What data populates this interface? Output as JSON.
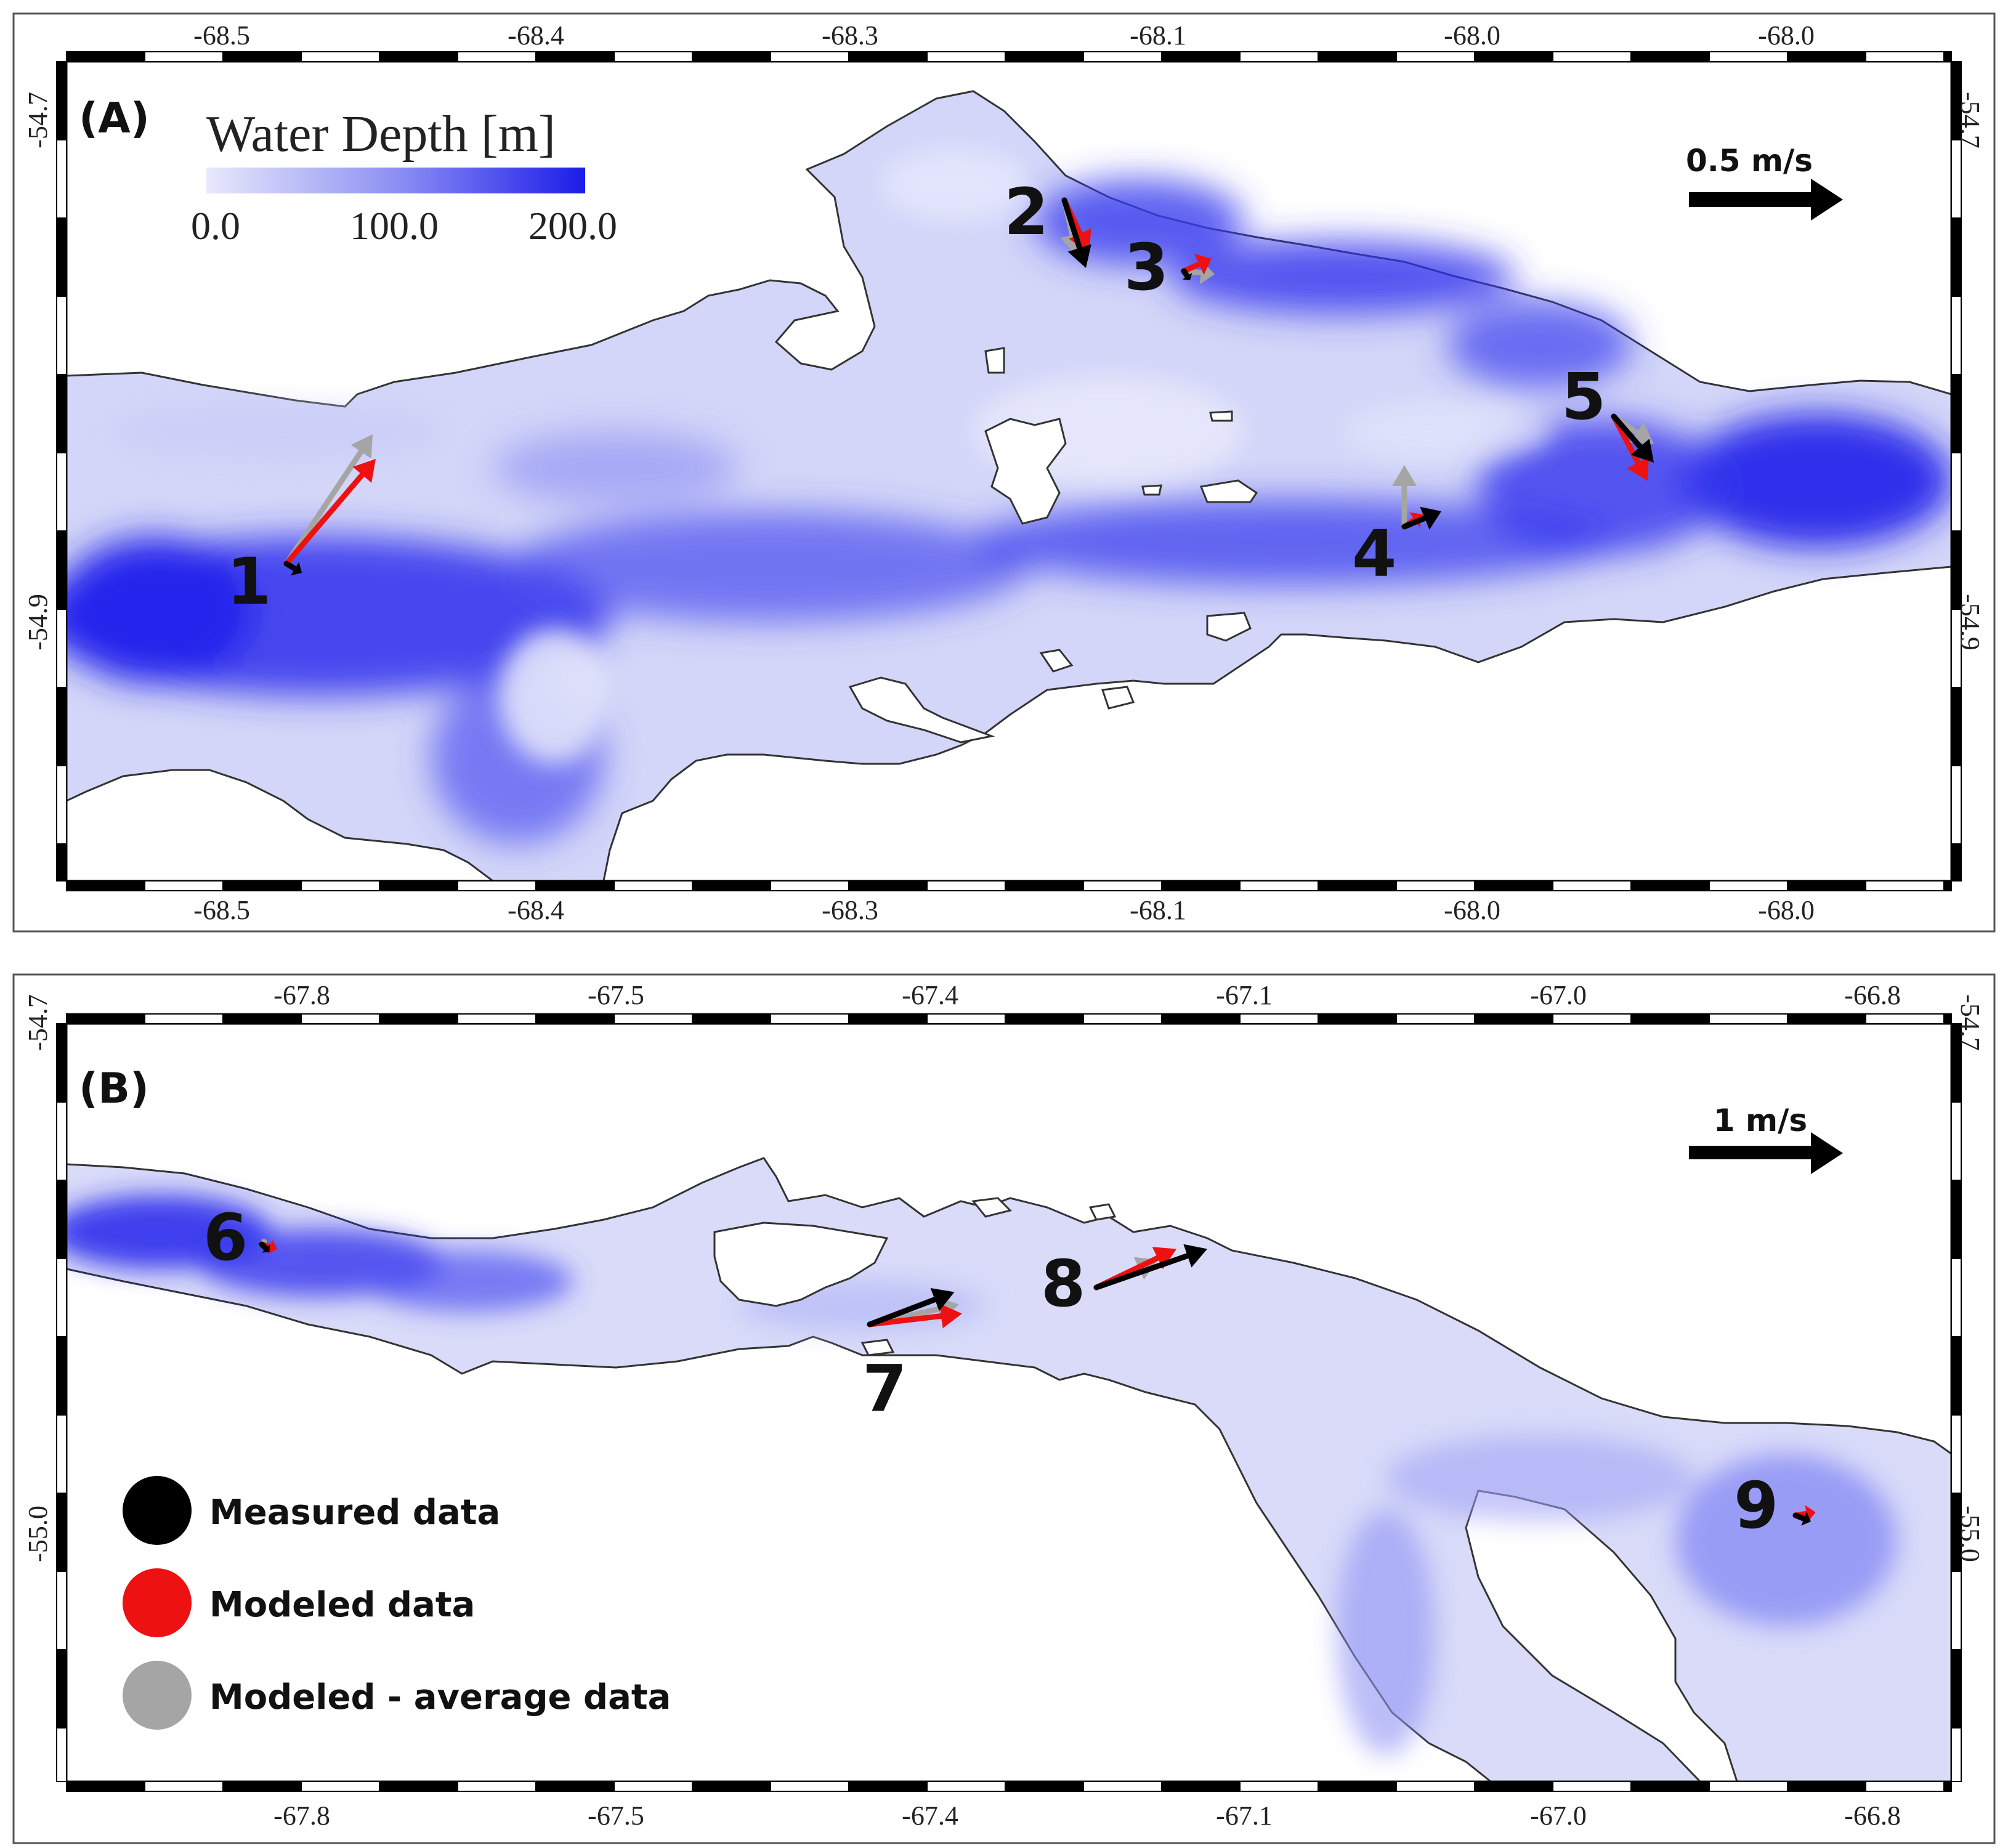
{
  "panels": [
    {
      "label": "(A)",
      "top_ticks": [
        "-68.5",
        "-68.4",
        "-68.3",
        "-68.1",
        "-68.0",
        "-68.0"
      ],
      "bottom_ticks": [
        "-68.5",
        "-68.4",
        "-68.3",
        "-68.1",
        "-68.0",
        "-68.0"
      ],
      "left_ticks": [
        "-54.7",
        "-54.9"
      ],
      "right_ticks": [
        "-54.7",
        "-54.9"
      ],
      "scale_label": "0.5 m/s",
      "stations": [
        {
          "label": "1",
          "vectors": {
            "measured": [
              0.05,
              -0.03
            ],
            "modeled": [
              0.29,
              0.34
            ],
            "average": [
              0.28,
              0.42
            ]
          }
        },
        {
          "label": "2",
          "vectors": {
            "measured": [
              0.07,
              -0.22
            ],
            "modeled": [
              0.08,
              -0.17
            ],
            "average": [
              0.04,
              -0.18
            ]
          }
        },
        {
          "label": "3",
          "vectors": {
            "measured": [
              0.02,
              -0.03
            ],
            "modeled": [
              0.09,
              0.04
            ],
            "average": [
              0.1,
              -0.01
            ]
          }
        },
        {
          "label": "4",
          "vectors": {
            "measured": [
              0.12,
              0.05
            ],
            "modeled": [
              0.06,
              0.04
            ],
            "average": [
              0.0,
              0.2
            ]
          }
        },
        {
          "label": "5",
          "vectors": {
            "measured": [
              0.13,
              -0.15
            ],
            "modeled": [
              0.11,
              -0.21
            ],
            "average": [
              0.13,
              -0.09
            ]
          }
        }
      ]
    },
    {
      "label": "(B)",
      "top_ticks": [
        "-67.8",
        "-67.5",
        "-67.4",
        "-67.1",
        "-67.0",
        "-66.8"
      ],
      "bottom_ticks": [
        "-67.8",
        "-67.5",
        "-67.4",
        "-67.1",
        "-67.0",
        "-66.8"
      ],
      "left_ticks": [
        "-54.7",
        "-55.0"
      ],
      "right_ticks": [
        "-54.7",
        "-55.0"
      ],
      "scale_label": "1 m/s",
      "stations": [
        {
          "label": "6",
          "vectors": {
            "measured": [
              0.05,
              -0.05
            ],
            "modeled": [
              0.1,
              -0.03
            ],
            "average": [
              0.03,
              0.03
            ]
          }
        },
        {
          "label": "7",
          "vectors": {
            "measured": [
              0.55,
              0.21
            ],
            "modeled": [
              0.6,
              0.07
            ],
            "average": [
              0.58,
              0.13
            ]
          }
        },
        {
          "label": "8",
          "vectors": {
            "measured": [
              0.72,
              0.25
            ],
            "modeled": [
              0.52,
              0.25
            ],
            "average": [
              0.4,
              0.18
            ]
          }
        },
        {
          "label": "9",
          "vectors": {
            "measured": [
              0.1,
              -0.04
            ],
            "modeled": [
              0.13,
              0.02
            ],
            "average": [
              0.05,
              -0.01
            ]
          }
        }
      ]
    }
  ],
  "depth_legend": {
    "title": "Water Depth [m]",
    "ticks": [
      "0.0",
      "100.0",
      "200.0"
    ],
    "color_min": "#e4e6fb",
    "color_max": "#1b1cea"
  },
  "vector_legend": {
    "items": [
      {
        "label": "Measured data",
        "color": "#000000"
      },
      {
        "label": "Modeled data",
        "color": "#ee1111"
      },
      {
        "label": "Modeled - average data",
        "color": "#a5a5a5"
      }
    ]
  },
  "colors": {
    "land": "#ffffff",
    "water_shallow": "#d3d6f8",
    "water_deep": "#2424ec",
    "coastline": "#333333",
    "measured": "#000000",
    "modeled": "#ee1111",
    "average": "#a5a5a5"
  }
}
